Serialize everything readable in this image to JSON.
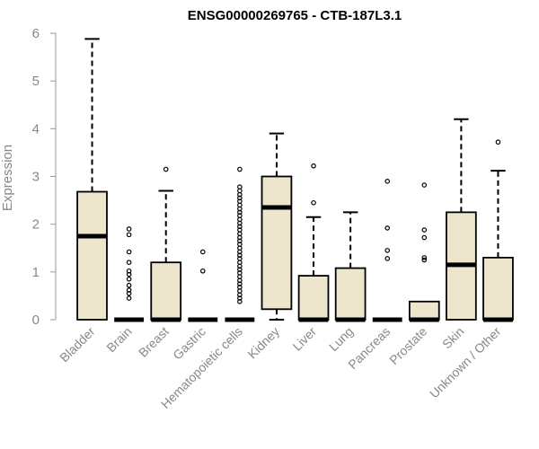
{
  "chart_data": {
    "type": "boxplot",
    "title": "ENSG00000269765 - CTB-187L3.1",
    "xlabel": "",
    "ylabel": "Expression",
    "ylim": [
      0,
      6
    ],
    "yticks": [
      0,
      1,
      2,
      3,
      4,
      5,
      6
    ],
    "box_color": "#EDE6CC",
    "categories": [
      "Bladder",
      "Brain",
      "Breast",
      "Gastric",
      "Hematopoietic cells",
      "Kidney",
      "Liver",
      "Lung",
      "Pancreas",
      "Prostate",
      "Skin",
      "Unknown / Other"
    ],
    "boxes": [
      {
        "name": "Bladder",
        "q1": 0,
        "median": 1.75,
        "q3": 2.68,
        "whisker_low": 0,
        "whisker_high": 5.88,
        "outliers": []
      },
      {
        "name": "Brain",
        "q1": 0,
        "median": 0,
        "q3": 0,
        "whisker_low": 0,
        "whisker_high": 0,
        "outliers": [
          0.45,
          0.55,
          0.62,
          0.72,
          0.85,
          0.95,
          1.02,
          1.2,
          1.42,
          1.78,
          1.9
        ]
      },
      {
        "name": "Breast",
        "q1": 0,
        "median": 0,
        "q3": 1.2,
        "whisker_low": 0,
        "whisker_high": 2.7,
        "outliers": [
          3.15
        ]
      },
      {
        "name": "Gastric",
        "q1": 0,
        "median": 0,
        "q3": 0,
        "whisker_low": 0,
        "whisker_high": 0,
        "outliers": [
          1.02,
          1.42
        ]
      },
      {
        "name": "Hematopoietic cells",
        "q1": 0,
        "median": 0,
        "q3": 0,
        "whisker_low": 0,
        "whisker_high": 0,
        "outliers": [
          0.38,
          0.45,
          0.52,
          0.6,
          0.68,
          0.75,
          0.82,
          0.9,
          0.98,
          1.05,
          1.12,
          1.2,
          1.28,
          1.35,
          1.42,
          1.5,
          1.58,
          1.65,
          1.72,
          1.8,
          1.88,
          1.95,
          2.02,
          2.1,
          2.18,
          2.25,
          2.32,
          2.4,
          2.48,
          2.55,
          2.62,
          2.7,
          2.78,
          3.15
        ]
      },
      {
        "name": "Kidney",
        "q1": 0.22,
        "median": 2.35,
        "q3": 3.0,
        "whisker_low": 0,
        "whisker_high": 3.9,
        "outliers": []
      },
      {
        "name": "Liver",
        "q1": 0,
        "median": 0,
        "q3": 0.92,
        "whisker_low": 0,
        "whisker_high": 2.15,
        "outliers": [
          2.45,
          3.22
        ]
      },
      {
        "name": "Lung",
        "q1": 0,
        "median": 0,
        "q3": 1.08,
        "whisker_low": 0,
        "whisker_high": 2.25,
        "outliers": []
      },
      {
        "name": "Pancreas",
        "q1": 0,
        "median": 0,
        "q3": 0,
        "whisker_low": 0,
        "whisker_high": 0,
        "outliers": [
          1.28,
          1.45,
          1.92,
          2.9
        ]
      },
      {
        "name": "Prostate",
        "q1": 0,
        "median": 0,
        "q3": 0.38,
        "whisker_low": 0,
        "whisker_high": 0.38,
        "outliers": [
          1.25,
          1.3,
          1.72,
          1.88,
          2.82
        ]
      },
      {
        "name": "Skin",
        "q1": 0,
        "median": 1.15,
        "q3": 2.25,
        "whisker_low": 0,
        "whisker_high": 4.2,
        "outliers": []
      },
      {
        "name": "Unknown / Other",
        "q1": 0,
        "median": 0,
        "q3": 1.3,
        "whisker_low": 0,
        "whisker_high": 3.12,
        "outliers": [
          3.72
        ]
      }
    ]
  }
}
